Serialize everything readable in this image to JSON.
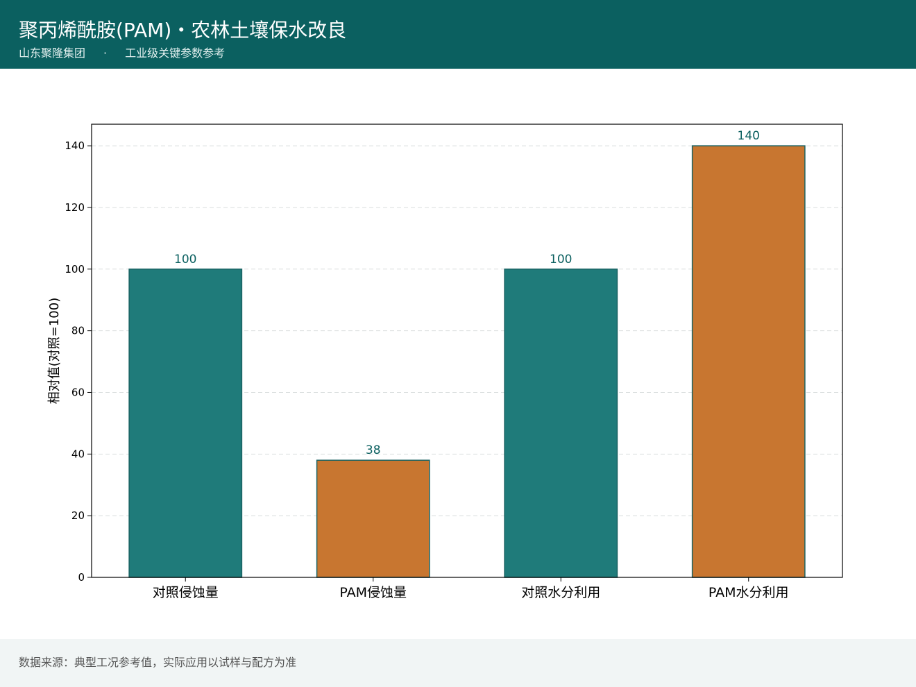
{
  "header": {
    "title": "聚丙烯酰胺(PAM)・农林土壤保水改良",
    "company": "山东聚隆集团",
    "separator": "·",
    "tagline": "工业级关键参数参考"
  },
  "footer": {
    "note": "数据来源：典型工况参考值，实际应用以试样与配方为准"
  },
  "colors": {
    "header_bg": "#0b6060",
    "control": "#1f7b7a",
    "pam": "#c87630",
    "bar_edge": "#1b6363",
    "label": "#0b6060"
  },
  "chart_data": {
    "type": "bar",
    "title": "",
    "xlabel": "",
    "ylabel": "相对值(对照=100)",
    "ylim": [
      0,
      147
    ],
    "yticks": [
      0,
      20,
      40,
      60,
      80,
      100,
      120,
      140
    ],
    "grid": "y-dashed",
    "categories": [
      "对照侵蚀量",
      "PAM侵蚀量",
      "对照水分利用",
      "PAM水分利用"
    ],
    "values": [
      100,
      38,
      100,
      140
    ],
    "bar_colors": [
      "#1f7b7a",
      "#c87630",
      "#1f7b7a",
      "#c87630"
    ],
    "data_labels": [
      "100",
      "38",
      "100",
      "140"
    ]
  }
}
